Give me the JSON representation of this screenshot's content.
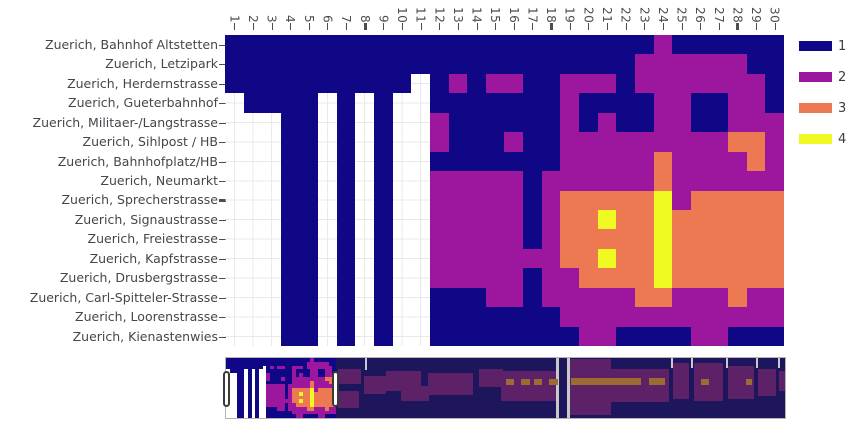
{
  "figure": {
    "background": "#ffffff",
    "axis_text_color": "#43474c",
    "tick_color": "#4a4d52",
    "gridline_color": "#e9e9e9"
  },
  "chart_data": {
    "type": "heatmap",
    "title": "",
    "xlabel": "",
    "ylabel": "",
    "x_labels": [
      "1",
      "2",
      "3",
      "4",
      "5",
      "6",
      "7",
      "8",
      "9",
      "10",
      "11",
      "12",
      "13",
      "14",
      "15",
      "16",
      "17",
      "18",
      "19",
      "20",
      "21",
      "22",
      "23",
      "24",
      "25",
      "26",
      "27",
      "28",
      "29",
      "30"
    ],
    "x_bold_ticks": [
      8,
      18,
      28
    ],
    "y_labels": [
      "Zuerich, Bahnhof Altstetten",
      "Zuerich, Letzipark",
      "Zuerich, Herdernstrasse",
      "Zuerich, Gueterbahnhof",
      "Zuerich, Militaer-/Langstrasse",
      "Zuerich, Sihlpost / HB",
      "Zuerich, Bahnhofplatz/HB",
      "Zuerich, Neumarkt",
      "Zuerich, Sprecherstrasse",
      "Zuerich, Signaustrasse",
      "Zuerich, Freiestrasse",
      "Zuerich, Kapfstrasse",
      "Zuerich, Drusbergstrasse",
      "Zuerich, Carl-Spitteler-Strasse",
      "Zuerich, Loorenstrasse",
      "Zuerich, Kienastenwies"
    ],
    "y_bold_ticks": [
      9
    ],
    "levels": [
      {
        "value": 1,
        "color": "#0f0786"
      },
      {
        "value": 2,
        "color": "#9c179e"
      },
      {
        "value": 3,
        "color": "#ed7953"
      },
      {
        "value": 4,
        "color": "#f0f921"
      }
    ],
    "missing_value_color": "#ffffff",
    "grid": [
      [
        1,
        1,
        1,
        1,
        1,
        1,
        1,
        1,
        1,
        1,
        1,
        1,
        1,
        1,
        1,
        1,
        1,
        1,
        1,
        1,
        1,
        1,
        1,
        2,
        1,
        1,
        1,
        1,
        1,
        1
      ],
      [
        1,
        1,
        1,
        1,
        1,
        1,
        1,
        1,
        1,
        1,
        1,
        1,
        1,
        1,
        1,
        1,
        1,
        1,
        1,
        1,
        1,
        1,
        2,
        2,
        2,
        2,
        2,
        2,
        1,
        1
      ],
      [
        1,
        1,
        1,
        1,
        1,
        1,
        1,
        1,
        1,
        1,
        0,
        1,
        2,
        1,
        2,
        2,
        1,
        1,
        2,
        2,
        2,
        1,
        2,
        2,
        2,
        2,
        2,
        2,
        2,
        1
      ],
      [
        0,
        1,
        1,
        1,
        1,
        0,
        1,
        0,
        1,
        0,
        0,
        1,
        1,
        1,
        1,
        1,
        1,
        1,
        2,
        1,
        1,
        1,
        1,
        2,
        2,
        1,
        1,
        2,
        2,
        1
      ],
      [
        0,
        0,
        0,
        1,
        1,
        0,
        1,
        0,
        1,
        0,
        0,
        2,
        1,
        1,
        1,
        1,
        1,
        1,
        2,
        1,
        2,
        1,
        1,
        2,
        2,
        1,
        1,
        2,
        2,
        2
      ],
      [
        0,
        0,
        0,
        1,
        1,
        0,
        1,
        0,
        1,
        0,
        0,
        2,
        1,
        1,
        1,
        2,
        1,
        1,
        2,
        2,
        2,
        2,
        2,
        2,
        2,
        2,
        2,
        3,
        3,
        2
      ],
      [
        0,
        0,
        0,
        1,
        1,
        0,
        1,
        0,
        1,
        0,
        0,
        1,
        1,
        1,
        1,
        1,
        1,
        1,
        2,
        2,
        2,
        2,
        2,
        3,
        2,
        2,
        2,
        2,
        3,
        2
      ],
      [
        0,
        0,
        0,
        1,
        1,
        0,
        1,
        0,
        1,
        0,
        0,
        2,
        2,
        2,
        2,
        2,
        1,
        2,
        2,
        2,
        2,
        2,
        2,
        3,
        2,
        2,
        2,
        2,
        2,
        2
      ],
      [
        0,
        0,
        0,
        1,
        1,
        0,
        1,
        0,
        1,
        0,
        0,
        2,
        2,
        2,
        2,
        2,
        1,
        2,
        3,
        3,
        3,
        3,
        3,
        4,
        2,
        3,
        3,
        3,
        3,
        3
      ],
      [
        0,
        0,
        0,
        1,
        1,
        0,
        1,
        0,
        1,
        0,
        0,
        2,
        2,
        2,
        2,
        2,
        1,
        2,
        3,
        3,
        4,
        3,
        3,
        4,
        3,
        3,
        3,
        3,
        3,
        3
      ],
      [
        0,
        0,
        0,
        1,
        1,
        0,
        1,
        0,
        1,
        0,
        0,
        2,
        2,
        2,
        2,
        2,
        1,
        2,
        3,
        3,
        3,
        3,
        3,
        4,
        3,
        3,
        3,
        3,
        3,
        3
      ],
      [
        0,
        0,
        0,
        1,
        1,
        0,
        1,
        0,
        1,
        0,
        0,
        2,
        2,
        2,
        2,
        2,
        2,
        2,
        3,
        3,
        4,
        3,
        3,
        4,
        3,
        3,
        3,
        3,
        3,
        3
      ],
      [
        0,
        0,
        0,
        1,
        1,
        0,
        1,
        0,
        1,
        0,
        0,
        2,
        2,
        2,
        2,
        2,
        1,
        2,
        2,
        3,
        3,
        3,
        3,
        4,
        3,
        3,
        3,
        3,
        3,
        3
      ],
      [
        0,
        0,
        0,
        1,
        1,
        0,
        1,
        0,
        1,
        0,
        0,
        1,
        1,
        1,
        2,
        2,
        1,
        2,
        2,
        2,
        2,
        2,
        3,
        3,
        2,
        2,
        2,
        3,
        2,
        2
      ],
      [
        0,
        0,
        0,
        1,
        1,
        0,
        1,
        0,
        1,
        0,
        0,
        1,
        1,
        1,
        1,
        1,
        1,
        1,
        2,
        2,
        2,
        2,
        2,
        2,
        2,
        2,
        2,
        2,
        2,
        2
      ],
      [
        0,
        0,
        0,
        1,
        1,
        0,
        1,
        0,
        1,
        0,
        0,
        1,
        1,
        1,
        1,
        1,
        1,
        1,
        1,
        2,
        2,
        1,
        1,
        1,
        1,
        2,
        2,
        1,
        1,
        1
      ]
    ]
  },
  "legend": {
    "labels": [
      "1",
      "2",
      "3",
      "4"
    ]
  },
  "rangeslider": {
    "window_start_col": 1,
    "window_end_col": 30,
    "handle_fill": "#ffffff",
    "handle_border": "#3a3a3a",
    "handles_x": [
      -3,
      106
    ],
    "dim_background": "#1d165c",
    "dim_colors": {
      "p": "#5c2166",
      "o": "#9c6a33",
      "g": "#c9c9c9"
    },
    "dim_blobs": [
      [
        112,
        11,
        23,
        15,
        "p"
      ],
      [
        112,
        33,
        21,
        17,
        "p"
      ],
      [
        138,
        18,
        22,
        18,
        "p"
      ],
      [
        160,
        13,
        35,
        20,
        "p"
      ],
      [
        175,
        28,
        28,
        15,
        "p"
      ],
      [
        202,
        15,
        45,
        22,
        "p"
      ],
      [
        253,
        11,
        24,
        18,
        "p"
      ],
      [
        275,
        13,
        55,
        30,
        "p"
      ],
      [
        330,
        0,
        3,
        60,
        "g"
      ],
      [
        341,
        0,
        3,
        60,
        "g"
      ],
      [
        344,
        1,
        41,
        56,
        "p"
      ],
      [
        385,
        11,
        58,
        33,
        "p"
      ],
      [
        447,
        5,
        16,
        36,
        "p"
      ],
      [
        468,
        5,
        29,
        38,
        "p"
      ],
      [
        502,
        8,
        26,
        33,
        "p"
      ],
      [
        532,
        11,
        18,
        27,
        "p"
      ],
      [
        553,
        13,
        6,
        20,
        "p"
      ],
      [
        280,
        21,
        8,
        6,
        "o"
      ],
      [
        295,
        21,
        9,
        6,
        "o"
      ],
      [
        308,
        21,
        8,
        6,
        "o"
      ],
      [
        323,
        21,
        9,
        6,
        "o"
      ],
      [
        345,
        20,
        70,
        7,
        "o"
      ],
      [
        423,
        20,
        16,
        7,
        "o"
      ],
      [
        475,
        21,
        8,
        6,
        "o"
      ],
      [
        520,
        21,
        6,
        6,
        "o"
      ],
      [
        139,
        0,
        2,
        12,
        "g"
      ],
      [
        445,
        0,
        2,
        10,
        "g"
      ],
      [
        465,
        0,
        2,
        10,
        "g"
      ],
      [
        500,
        0,
        2,
        10,
        "g"
      ],
      [
        530,
        0,
        2,
        10,
        "g"
      ],
      [
        552,
        0,
        2,
        10,
        "g"
      ]
    ]
  }
}
